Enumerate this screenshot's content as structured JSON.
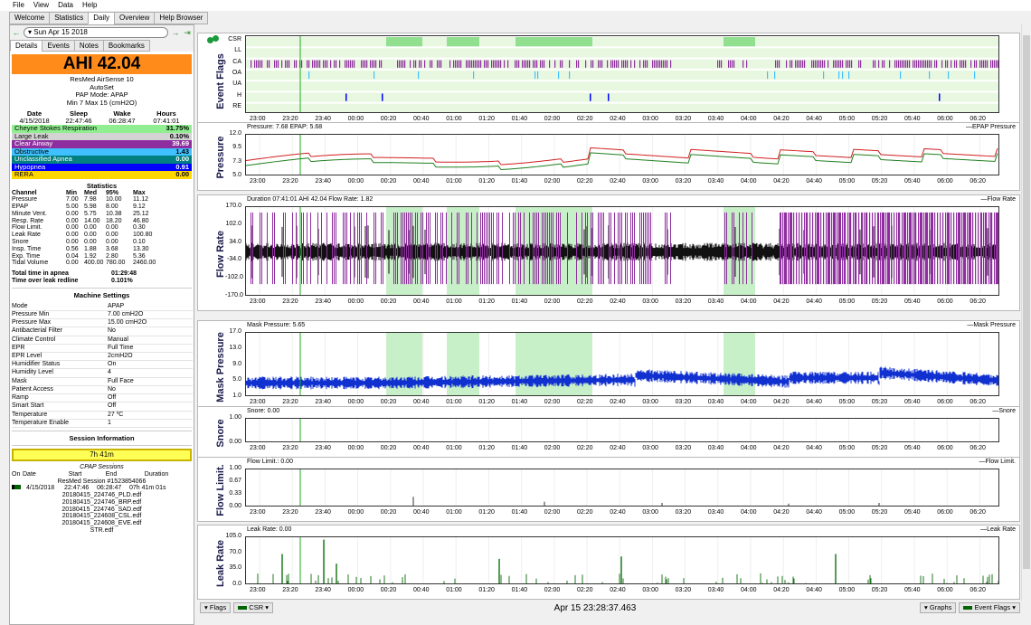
{
  "menu": [
    "File",
    "View",
    "Data",
    "Help"
  ],
  "tabs": [
    "Welcome",
    "Statistics",
    "Daily",
    "Overview",
    "Help Browser"
  ],
  "nav": {
    "date": "Sun Apr 15 2018"
  },
  "subtabs": [
    "Details",
    "Events",
    "Notes",
    "Bookmarks"
  ],
  "ahi": "AHI 42.04",
  "device": [
    "ResMed AirSense 10",
    "AutoSet",
    "PAP Mode: APAP",
    "Min 7 Max 15 (cmH2O)"
  ],
  "summary": {
    "headers": [
      "Date",
      "Sleep",
      "Wake",
      "Hours"
    ],
    "values": [
      "4/15/2018",
      "22:47:46",
      "06:28:47",
      "07:41:01"
    ]
  },
  "events": [
    {
      "name": "Cheyne Stokes Respiration",
      "value": "31.75%",
      "color": "#90ee90"
    },
    {
      "name": "Large Leak",
      "value": "0.10%",
      "color": "#d3d3d3"
    },
    {
      "name": "Clear Airway",
      "value": "39.69",
      "color": "#8e2e9e",
      "fg": "#ffffff"
    },
    {
      "name": "Obstructive",
      "value": "1.43",
      "color": "#40c0ff"
    },
    {
      "name": "Unclassified Apnea",
      "value": "0.00",
      "color": "#008080",
      "fg": "#ffffff"
    },
    {
      "name": "Hypopnea",
      "value": "0.91",
      "color": "#0000ff",
      "fg": "#ffffff"
    },
    {
      "name": "RERA",
      "value": "0.00",
      "color": "#ffd700"
    }
  ],
  "statistics": {
    "title": "Statistics",
    "headers": [
      "Channel",
      "Min",
      "Med",
      "95%",
      "Max"
    ],
    "rows": [
      [
        "Pressure",
        "7.00",
        "7.98",
        "10.00",
        "11.12"
      ],
      [
        "EPAP",
        "5.00",
        "5.98",
        "8.00",
        "9.12"
      ],
      [
        "Minute Vent.",
        "0.00",
        "5.75",
        "10.38",
        "25.12"
      ],
      [
        "Resp. Rate",
        "0.00",
        "14.00",
        "18.20",
        "46.80"
      ],
      [
        "Flow Limit.",
        "0.00",
        "0.00",
        "0.00",
        "0.30"
      ],
      [
        "Leak Rate",
        "0.00",
        "0.00",
        "0.00",
        "100.80"
      ],
      [
        "Snore",
        "0.00",
        "0.00",
        "0.00",
        "0.10"
      ],
      [
        "Insp. Time",
        "0.56",
        "1.88",
        "3.68",
        "13.30"
      ],
      [
        "Exp. Time",
        "0.04",
        "1.92",
        "2.80",
        "5.36"
      ],
      [
        "Tidal Volume",
        "0.00",
        "400.00",
        "780.00",
        "2460.00"
      ]
    ],
    "apnea": [
      [
        "Total time in apnea",
        "01:29:48"
      ],
      [
        "Time over leak redline",
        "0.101%"
      ]
    ]
  },
  "machine": {
    "title": "Machine Settings",
    "rows": [
      [
        "Mode",
        "APAP"
      ],
      [
        "Pressure Min",
        "7.00 cmH2O"
      ],
      [
        "Pressure Max",
        "15.00 cmH2O"
      ],
      [
        "Antibacterial Filter",
        "No"
      ],
      [
        "Climate Control",
        "Manual"
      ],
      [
        "EPR",
        "Full Time"
      ],
      [
        "EPR Level",
        "2cmH2O"
      ],
      [
        "Humidifier Status",
        "On"
      ],
      [
        "Humidity Level",
        "4"
      ],
      [
        "Mask",
        "Full Face"
      ],
      [
        "Patient Access",
        "No"
      ],
      [
        "Ramp",
        "Off"
      ],
      [
        "Smart Start",
        "Off"
      ],
      [
        "Temperature",
        "27 ºC"
      ],
      [
        "Temperature Enable",
        "1"
      ]
    ]
  },
  "session": {
    "title": "Session Information",
    "duration": "7h 41m",
    "cpap_title": "CPAP Sessions",
    "headers": [
      "On",
      "Date",
      "Start",
      "End",
      "Duration"
    ],
    "row": [
      "4/15/2018",
      "22:47:46",
      "06:28:47",
      "07h 41m 01s"
    ],
    "resmed": "ResMed Session #1523854066",
    "files": [
      "20180415_224746_PLD.edf",
      "20180415_224746_BRP.edf",
      "20180415_224746_SAD.edf",
      "20180415_224608_CSL.edf",
      "20180415_224608_EVE.edf",
      "STR.edf"
    ]
  },
  "time_ticks": [
    "23:00",
    "23:20",
    "23:40",
    "00:00",
    "00:20",
    "00:40",
    "01:00",
    "01:20",
    "01:40",
    "02:00",
    "02:20",
    "02:40",
    "03:00",
    "03:20",
    "03:40",
    "04:00",
    "04:20",
    "04:40",
    "05:00",
    "05:20",
    "05:40",
    "06:00",
    "06:20"
  ],
  "graphs": {
    "flags": {
      "title": "Event Flags",
      "labels": [
        "CSR",
        "LL",
        "CA",
        "OA",
        "UA",
        "H",
        "RE"
      ]
    },
    "pressure": {
      "title": "Pressure",
      "left": "Pressure: 7.68 EPAP: 5.68",
      "right": "EPAP Pressure",
      "yticks": [
        "12.0",
        "9.5",
        "7.3",
        "5.0"
      ]
    },
    "flow": {
      "title": "Flow Rate",
      "left": "Duration 07:41:01 AHI 42.04 Flow Rate: 1.82",
      "right": "Flow Rate",
      "yticks": [
        "170.0",
        "102.0",
        "34.0",
        "-34.0",
        "-102.0",
        "-170.0"
      ]
    },
    "mask": {
      "title": "Mask Pressure",
      "left": "Mask Pressure: 5.65",
      "right": "Mask Pressure",
      "yticks": [
        "17.0",
        "13.0",
        "9.0",
        "5.0",
        "1.0"
      ]
    },
    "snore": {
      "title": "Snore",
      "left": "Snore: 0.00",
      "right": "Snore",
      "yticks": [
        "1.00",
        "0.00"
      ]
    },
    "flowlimit": {
      "title": "Flow Limit.",
      "left": "Flow Limit.: 0.00",
      "right": "Flow Limit.",
      "yticks": [
        "1.00",
        "0.67",
        "0.33",
        "0.00"
      ]
    },
    "leak": {
      "title": "Leak Rate",
      "left": "Leak Rate: 0.00",
      "right": "Leak Rate",
      "yticks": [
        "105.0",
        "70.0",
        "35.0",
        "0.0"
      ]
    }
  },
  "bottom": {
    "flags": "Flags",
    "csr": "CSR",
    "timestamp": "Apr 15 23:28:37.463",
    "graphs": "Graphs",
    "eventflags": "Event Flags"
  }
}
